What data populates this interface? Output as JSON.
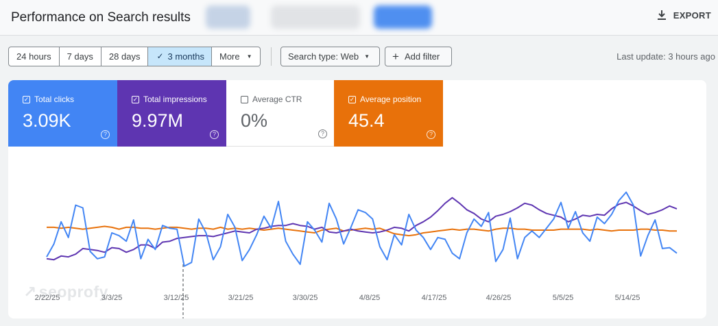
{
  "header": {
    "title": "Performance on Search results",
    "export_label": "EXPORT",
    "export_icon": "download-icon"
  },
  "toolbar": {
    "ranges": [
      {
        "label": "24 hours",
        "active": false
      },
      {
        "label": "7 days",
        "active": false
      },
      {
        "label": "28 days",
        "active": false
      },
      {
        "label": "3 months",
        "active": true
      },
      {
        "label": "More",
        "active": false
      }
    ],
    "search_type_label": "Search type: Web",
    "add_filter_label": "Add filter",
    "last_update": "Last update: 3 hours ago"
  },
  "metrics": [
    {
      "label": "Total clicks",
      "value": "3.09K",
      "checked": true,
      "color": "#4285f4"
    },
    {
      "label": "Total impressions",
      "value": "9.97M",
      "checked": true,
      "color": "#5e35b1"
    },
    {
      "label": "Average CTR",
      "value": "0%",
      "checked": false,
      "color": "#ffffff"
    },
    {
      "label": "Average position",
      "value": "45.4",
      "checked": true,
      "color": "#e8710a"
    }
  ],
  "watermark": "seoprofy",
  "chart_data": {
    "type": "line",
    "x_tick_labels": [
      "2/22/25",
      "3/3/25",
      "3/12/25",
      "3/21/25",
      "3/30/25",
      "4/8/25",
      "4/17/25",
      "4/26/25",
      "5/5/25",
      "5/14/25"
    ],
    "marker_date": "3/12/25",
    "grid": false,
    "series": [
      {
        "name": "Total clicks",
        "color": "#4285f4",
        "values": [
          14,
          28,
          52,
          35,
          70,
          67,
          20,
          12,
          14,
          40,
          37,
          31,
          54,
          12,
          33,
          22,
          48,
          45,
          44,
          4,
          8,
          55,
          40,
          11,
          25,
          60,
          46,
          10,
          22,
          38,
          58,
          45,
          74,
          31,
          17,
          6,
          52,
          43,
          30,
          72,
          55,
          28,
          46,
          65,
          62,
          55,
          25,
          11,
          38,
          27,
          60,
          43,
          35,
          22,
          35,
          33,
          18,
          12,
          40,
          55,
          47,
          62,
          9,
          22,
          56,
          12,
          35,
          42,
          35,
          45,
          55,
          73,
          45,
          63,
          40,
          31,
          57,
          50,
          60,
          75,
          84,
          70,
          15,
          37,
          54,
          23,
          24,
          18
        ]
      },
      {
        "name": "Total impressions",
        "color": "#5e35b1",
        "values": [
          12,
          11,
          15,
          14,
          17,
          23,
          22,
          21,
          19,
          24,
          23,
          19,
          22,
          27,
          27,
          23,
          30,
          31,
          34,
          35,
          36,
          37,
          37,
          36,
          38,
          40,
          42,
          41,
          40,
          44,
          45,
          47,
          48,
          48,
          50,
          48,
          47,
          44,
          46,
          41,
          40,
          42,
          44,
          42,
          41,
          40,
          41,
          43,
          46,
          45,
          42,
          48,
          52,
          57,
          64,
          72,
          78,
          72,
          65,
          61,
          55,
          52,
          58,
          60,
          63,
          67,
          72,
          70,
          65,
          61,
          59,
          57,
          52,
          55,
          59,
          58,
          60,
          59,
          66,
          71,
          73,
          69,
          64,
          60,
          62,
          65,
          69,
          66
        ]
      },
      {
        "name": "Average position",
        "color": "#e8710a",
        "values": [
          46,
          46,
          45,
          46,
          45,
          44,
          45,
          46,
          47,
          46,
          44,
          46,
          46,
          45,
          45,
          44,
          45,
          46,
          46,
          45,
          44,
          45,
          45,
          44,
          46,
          44,
          45,
          44,
          45,
          44,
          43,
          44,
          45,
          44,
          43,
          42,
          41,
          40,
          43,
          44,
          45,
          42,
          43,
          44,
          45,
          44,
          45,
          42,
          39,
          38,
          37,
          38,
          40,
          41,
          42,
          43,
          44,
          43,
          44,
          44,
          43,
          42,
          44,
          45,
          45,
          44,
          44,
          43,
          43,
          43,
          43,
          44,
          44,
          44,
          44,
          43,
          44,
          43,
          42,
          43,
          43,
          43,
          44,
          44,
          43,
          43,
          42,
          42
        ]
      }
    ]
  }
}
